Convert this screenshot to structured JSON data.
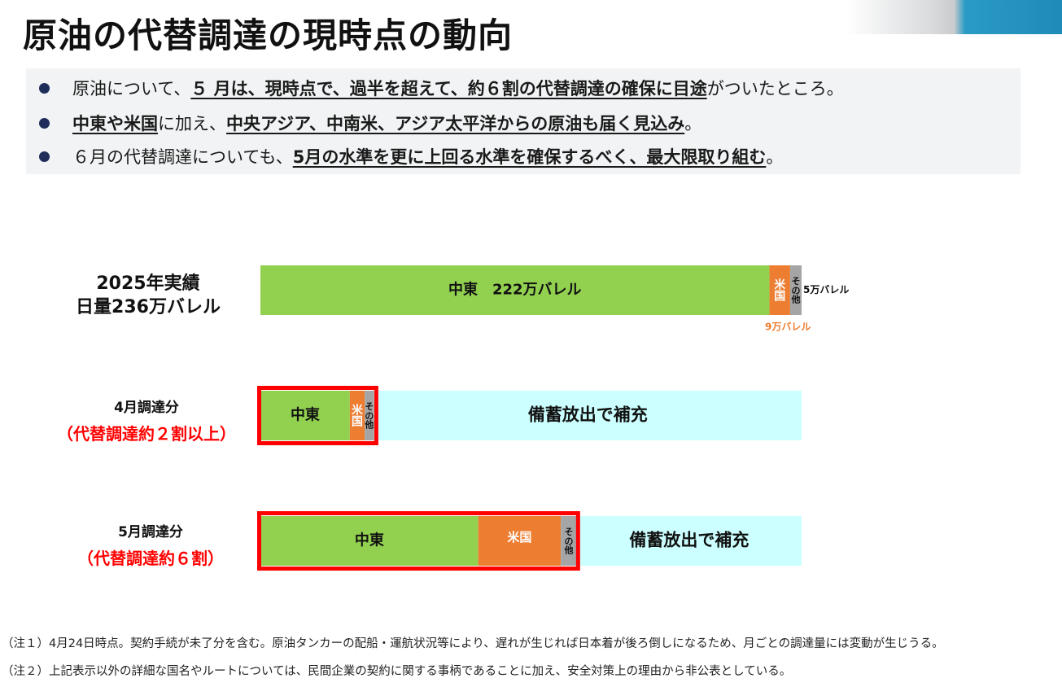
{
  "header": {
    "title": "原油の代替調達の現時点の動向"
  },
  "summary": {
    "bullets": [
      {
        "pre": "原油について、",
        "hl": "５ 月は、現時点で、過半を超えて、約６割の代替調達の確保に目途",
        "post": "がついたところ。"
      },
      {
        "hl1": "中東や米国",
        "mid": "に加え、",
        "hl2": "中央アジア、中南米、アジア太平洋からの原油も届く見込み",
        "post": "。"
      },
      {
        "pre": "６月の代替調達についても、",
        "hl": "5月の水準を更に上回る水準を確保するべく、最大限取り組む",
        "post": "。"
      }
    ]
  },
  "rows": {
    "r2025": {
      "line1": "2025年実績",
      "line2": "日量236万バレル"
    },
    "apr": {
      "line1": "4月調達分",
      "line2": "（代替調達約２割以上）"
    },
    "may": {
      "line1": "5月調達分",
      "line2": "（代替調達約６割）"
    }
  },
  "chart_data": {
    "type": "bar",
    "orientation": "horizontal",
    "stacked": true,
    "unit": "万バレル",
    "total": 236,
    "colors": {
      "middle_east": "#92d050",
      "usa": "#ed7d31",
      "other": "#a5a5a5",
      "reserve": "#ccffff",
      "highlight": "#ff0000"
    },
    "rows": [
      {
        "name": "2025年実績",
        "segments": [
          {
            "key": "middle_east",
            "label": "中東　222万バレル",
            "value": 222
          },
          {
            "key": "usa",
            "label": "米国",
            "value": 9,
            "callout": "9万バレル"
          },
          {
            "key": "other",
            "label": "その他",
            "value": 5,
            "callout": "5万バレル"
          }
        ]
      },
      {
        "name": "4月調達分",
        "segments": [
          {
            "key": "middle_east",
            "label": "中東",
            "value": 39
          },
          {
            "key": "usa",
            "label": "米国",
            "value": 6.5
          },
          {
            "key": "other",
            "label": "その他",
            "value": 4
          },
          {
            "key": "reserve",
            "label": "備蓄放出で補充",
            "value": 186.5
          }
        ],
        "highlight_value": 50
      },
      {
        "name": "5月調達分",
        "segments": [
          {
            "key": "middle_east",
            "label": "中東",
            "value": 95
          },
          {
            "key": "usa",
            "label": "米国",
            "value": 36
          },
          {
            "key": "other",
            "label": "その他",
            "value": 7
          },
          {
            "key": "reserve",
            "label": "備蓄放出で補充",
            "value": 98
          }
        ],
        "highlight_value": 138
      }
    ]
  },
  "notes": [
    "（注１）4月24日時点。契約手続が未了分を含む。原油タンカーの配船・運航状況等により、遅れが生じれば日本着が後ろ倒しになるため、月ごとの調達量には変動が生じうる。",
    "（注２）上記表示以外の詳細な国名やルートについては、民間企業の契約に関する事柄であることに加え、安全対策上の理由から非公表としている。"
  ]
}
